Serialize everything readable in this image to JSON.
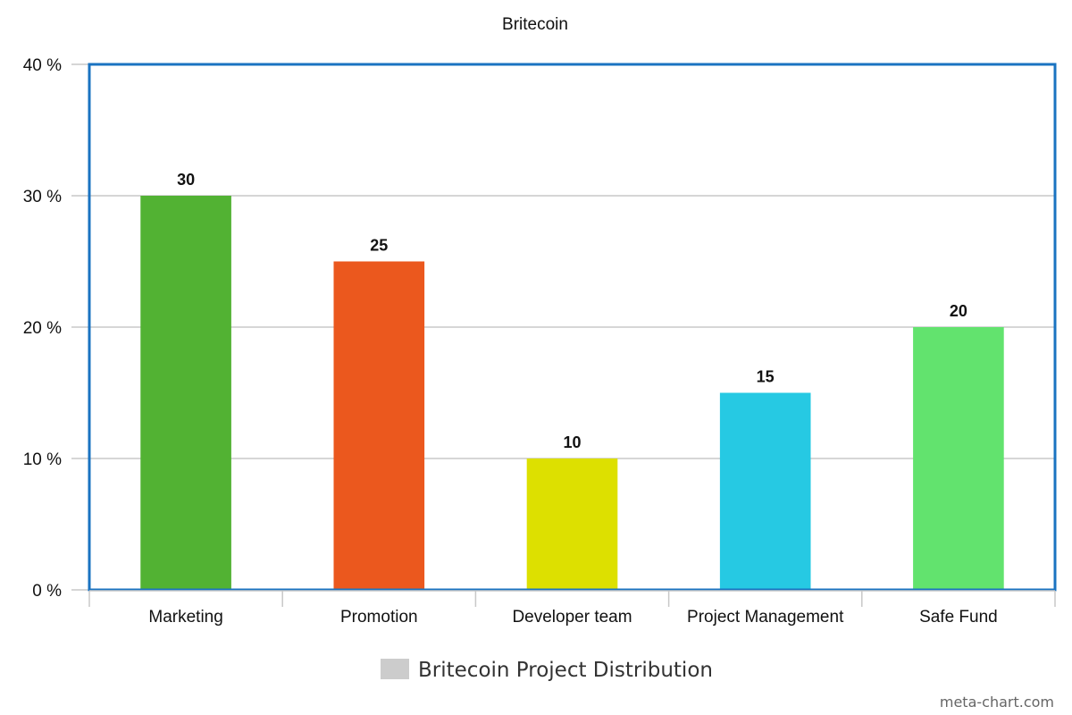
{
  "chart_data": {
    "type": "bar",
    "title": "Britecoin",
    "categories": [
      "Marketing",
      "Promotion",
      "Developer team",
      "Project Management",
      "Safe Fund"
    ],
    "series": [
      {
        "name": "Britecoin Project Distribution",
        "values": [
          30,
          25,
          10,
          15,
          20
        ],
        "colors": [
          "#52b233",
          "#eb581e",
          "#dde000",
          "#26c9e3",
          "#62e36e"
        ]
      }
    ],
    "ylim": [
      0,
      40
    ],
    "yticks": [
      "0 %",
      "10 %",
      "20 %",
      "30 %",
      "40 %"
    ],
    "data_labels": [
      "30",
      "25",
      "10",
      "15",
      "20"
    ],
    "grid": true,
    "legend_position": "bottom",
    "legend_swatch_color": "#cccccc",
    "frame_color": "#1a73c1"
  },
  "credit": "meta-chart.com"
}
